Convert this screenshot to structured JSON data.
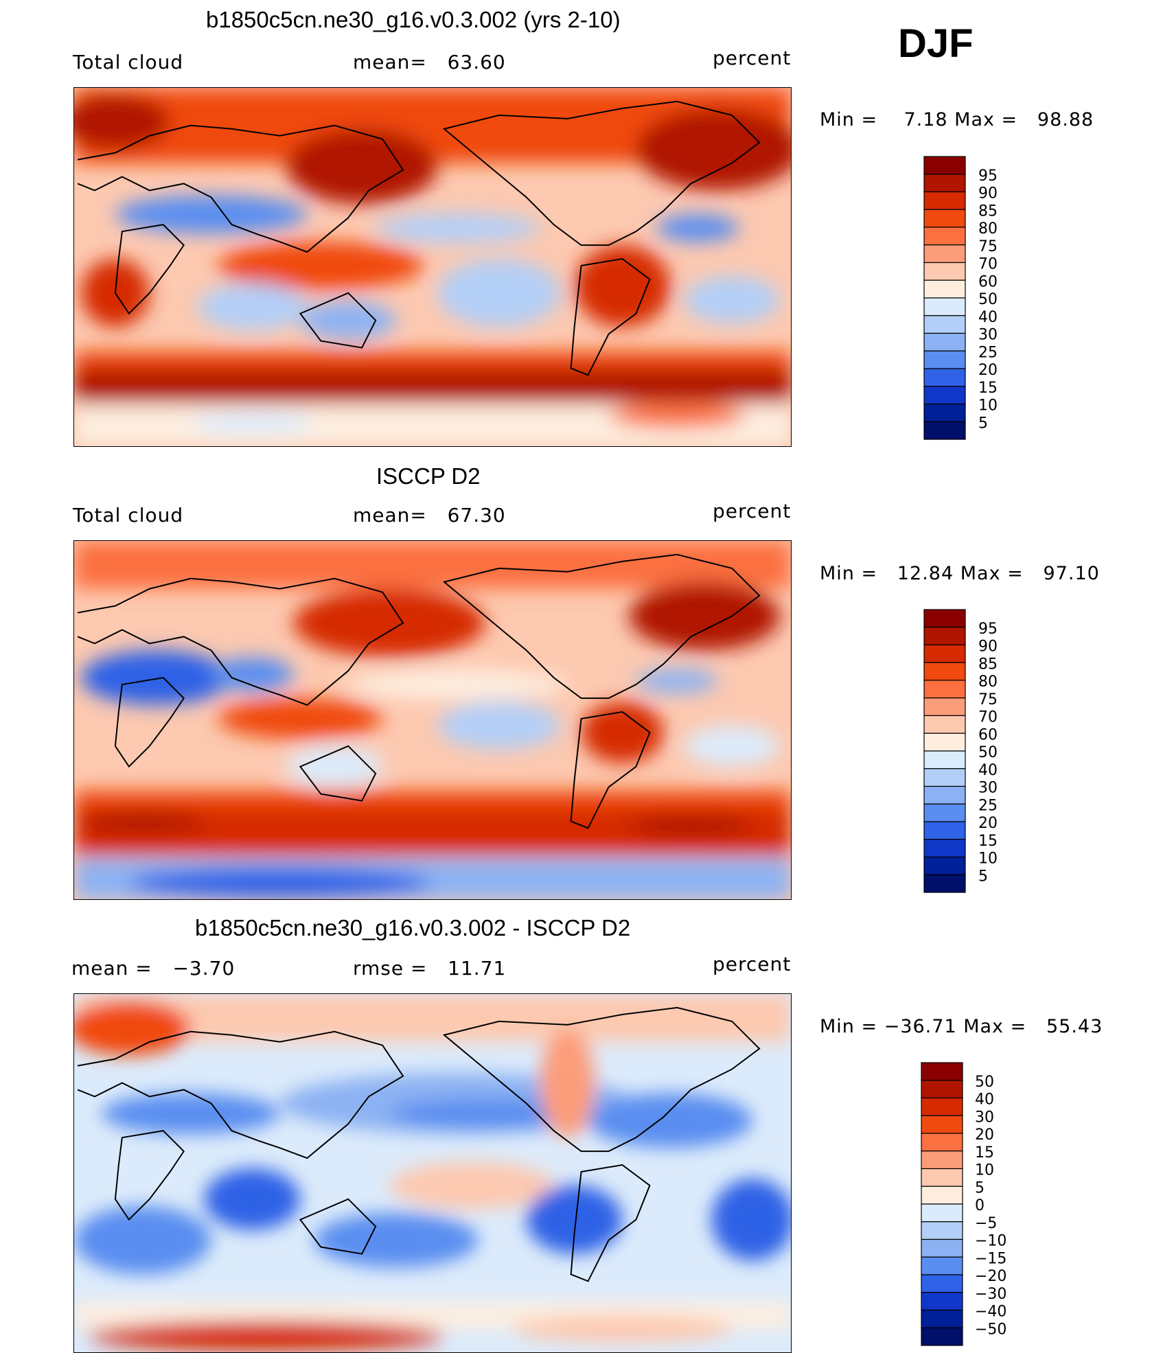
{
  "season": "DJF",
  "panels": [
    {
      "title": "b1850c5cn.ne30_g16.v0.3.002 (yrs 2-10)",
      "left_label": "Total cloud",
      "stat1": "mean=   63.60",
      "stat2": "",
      "units": "percent",
      "minmax": "Min =    7.18 Max =   98.88"
    },
    {
      "title": "ISCCP D2",
      "left_label": "Total cloud",
      "stat1": "mean=   67.30",
      "stat2": "",
      "units": "percent",
      "minmax": "Min =   12.84 Max =   97.10"
    },
    {
      "title": "b1850c5cn.ne30_g16.v0.3.002 - ISCCP D2",
      "left_label": "mean =   −3.70",
      "stat1": "",
      "stat2": "rmse =   11.71",
      "units": "percent",
      "minmax": "Min = −36.71 Max =   55.43"
    }
  ],
  "chart_data": [
    {
      "type": "heatmap",
      "title": "b1850c5cn.ne30_g16.v0.3.002 (yrs 2-10)",
      "variable": "Total cloud",
      "units": "percent",
      "mean": 63.6,
      "min": 7.18,
      "max": 98.88,
      "colorbar_labels": [
        "95",
        "90",
        "85",
        "80",
        "75",
        "70",
        "60",
        "50",
        "40",
        "30",
        "25",
        "20",
        "15",
        "10",
        "5"
      ],
      "colorbar_colors": [
        "#8a0000",
        "#b01500",
        "#d62a00",
        "#f04a10",
        "#fb7040",
        "#fc9d7a",
        "#fdc9b0",
        "#fdeee0",
        "#dcebfb",
        "#b3cff7",
        "#8db2f3",
        "#5a8ef0",
        "#2f62e6",
        "#1037c8",
        "#00209a",
        "#000f6a"
      ]
    },
    {
      "type": "heatmap",
      "title": "ISCCP D2",
      "variable": "Total cloud",
      "units": "percent",
      "mean": 67.3,
      "min": 12.84,
      "max": 97.1,
      "colorbar_labels": [
        "95",
        "90",
        "85",
        "80",
        "75",
        "70",
        "60",
        "50",
        "40",
        "30",
        "25",
        "20",
        "15",
        "10",
        "5"
      ],
      "colorbar_colors": [
        "#8a0000",
        "#b01500",
        "#d62a00",
        "#f04a10",
        "#fb7040",
        "#fc9d7a",
        "#fdc9b0",
        "#fdeee0",
        "#dcebfb",
        "#b3cff7",
        "#8db2f3",
        "#5a8ef0",
        "#2f62e6",
        "#1037c8",
        "#00209a",
        "#000f6a"
      ]
    },
    {
      "type": "heatmap",
      "title": "b1850c5cn.ne30_g16.v0.3.002 - ISCCP D2",
      "units": "percent",
      "mean": -3.7,
      "rmse": 11.71,
      "min": -36.71,
      "max": 55.43,
      "colorbar_labels": [
        "50",
        "40",
        "30",
        "20",
        "15",
        "10",
        "5",
        "0",
        "−5",
        "−10",
        "−15",
        "−20",
        "−30",
        "−40",
        "−50"
      ],
      "colorbar_colors": [
        "#8a0000",
        "#b01500",
        "#d62a00",
        "#f04a10",
        "#fb7040",
        "#fc9d7a",
        "#fdc9b0",
        "#fdeee0",
        "#dcebfb",
        "#b3cff7",
        "#8db2f3",
        "#5a8ef0",
        "#2f62e6",
        "#1037c8",
        "#00209a",
        "#000f6a"
      ]
    }
  ]
}
